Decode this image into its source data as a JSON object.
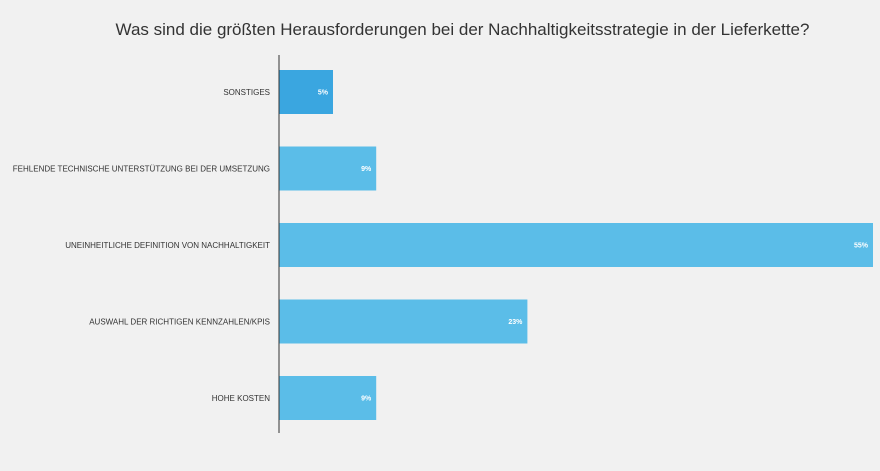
{
  "chart_data": {
    "type": "bar",
    "orientation": "horizontal",
    "title": "Was sind die größten Herausforderungen bei der Nachhaltigkeitsstrategie in der Lieferkette?",
    "categories": [
      "SONSTIGES",
      "FEHLENDE TECHNISCHE UNTERSTÜTZUNG BEI DER UMSETZUNG",
      "UNEINHEITLICHE DEFINITION VON NACHHALTIGKEIT",
      "AUSWAHL DER RICHTIGEN KENNZAHLEN/KPIS",
      "HOHE KOSTEN"
    ],
    "values": [
      5,
      9,
      55,
      23,
      9
    ],
    "value_labels": [
      "5%",
      "9%",
      "55%",
      "23%",
      "9%"
    ],
    "unit": "%",
    "xlim": [
      0,
      55
    ],
    "grid": false,
    "colors": {
      "bar": "#5bbde8",
      "bar_highlight": "#3aa6e0",
      "axis": "#333333",
      "background": "#f1f1f1"
    },
    "highlight_index": 0
  }
}
